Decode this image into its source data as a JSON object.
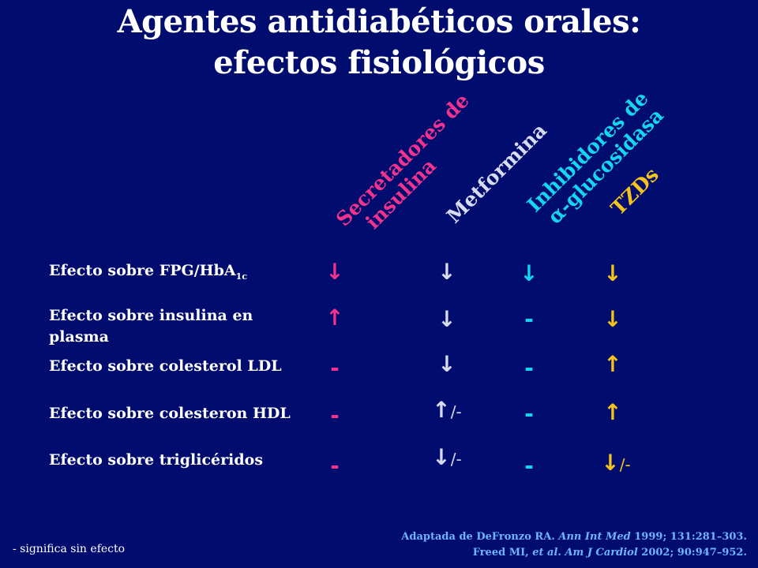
{
  "title": {
    "line1": "Agentes antidiabéticos orales:",
    "line2": "efectos fisiológicos"
  },
  "columns": [
    {
      "line1": "Secretadores de",
      "line2": "insulina",
      "color": "#f0338c"
    },
    {
      "line1": "Metformina",
      "line2": "",
      "color": "#d8dcf2"
    },
    {
      "line1": "Inhibidores de",
      "line2": "α-glucosidasa",
      "color": "#14d6f0"
    },
    {
      "line1": "TZDs",
      "line2": "",
      "color": "#f5c31e"
    }
  ],
  "rows": [
    {
      "label": "Efecto sobre FPG/HbA",
      "label_sub": "1c",
      "cells": [
        {
          "symbol": "↓",
          "suffix": ""
        },
        {
          "symbol": "↓",
          "suffix": ""
        },
        {
          "symbol": "↓",
          "suffix": ""
        },
        {
          "symbol": "↓",
          "suffix": ""
        }
      ]
    },
    {
      "label": "Efecto sobre insulina en plasma",
      "label_sub": "",
      "cells": [
        {
          "symbol": "↑",
          "suffix": ""
        },
        {
          "symbol": "↓",
          "suffix": ""
        },
        {
          "symbol": "-",
          "suffix": ""
        },
        {
          "symbol": "↓",
          "suffix": ""
        }
      ]
    },
    {
      "label": "Efecto sobre colesterol LDL",
      "label_sub": "",
      "cells": [
        {
          "symbol": "-",
          "suffix": ""
        },
        {
          "symbol": "↓",
          "suffix": ""
        },
        {
          "symbol": "-",
          "suffix": ""
        },
        {
          "symbol": "↑",
          "suffix": ""
        }
      ]
    },
    {
      "label": "Efecto sobre colesteron HDL",
      "label_sub": "",
      "cells": [
        {
          "symbol": "-",
          "suffix": ""
        },
        {
          "symbol": "↑",
          "suffix": "/-"
        },
        {
          "symbol": "-",
          "suffix": ""
        },
        {
          "symbol": "↑",
          "suffix": ""
        }
      ]
    },
    {
      "label": "Efecto sobre triglicéridos",
      "label_sub": "",
      "cells": [
        {
          "symbol": "-",
          "suffix": ""
        },
        {
          "symbol": "↓",
          "suffix": "/-"
        },
        {
          "symbol": "-",
          "suffix": ""
        },
        {
          "symbol": "↓",
          "suffix": "/-"
        }
      ]
    }
  ],
  "footnote": "-  significa sin efecto",
  "reference": {
    "line1_a": "Adaptada de DeFronzo RA. ",
    "line1_b": "Ann Int Med",
    "line1_c": " 1999; 131:281–303.",
    "line2_a": "Freed MI, ",
    "line2_b": "et al. Am J Cardiol",
    "line2_c": " 2002; 90:947–952."
  }
}
